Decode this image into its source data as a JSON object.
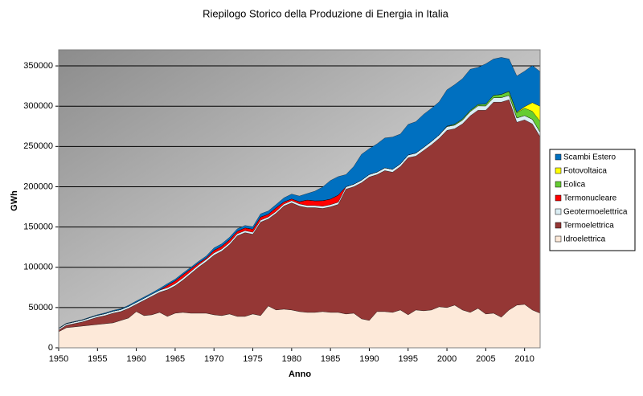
{
  "chart_data": {
    "type": "stacked_area",
    "title": "Riepilogo Storico della Produzione di Energia in Italia",
    "x_label": "Anno",
    "y_label": "GWh",
    "x": [
      1950,
      1951,
      1952,
      1953,
      1954,
      1955,
      1956,
      1957,
      1958,
      1959,
      1960,
      1961,
      1962,
      1963,
      1964,
      1965,
      1966,
      1967,
      1968,
      1969,
      1970,
      1971,
      1972,
      1973,
      1974,
      1975,
      1976,
      1977,
      1978,
      1979,
      1980,
      1981,
      1982,
      1983,
      1984,
      1985,
      1986,
      1987,
      1988,
      1989,
      1990,
      1991,
      1992,
      1993,
      1994,
      1995,
      1996,
      1997,
      1998,
      1999,
      2000,
      2001,
      2002,
      2003,
      2004,
      2005,
      2006,
      2007,
      2008,
      2009,
      2010,
      2011,
      2012
    ],
    "xlim": [
      1950,
      2012
    ],
    "xticks": [
      1950,
      1955,
      1960,
      1965,
      1970,
      1975,
      1980,
      1985,
      1990,
      1995,
      2000,
      2005,
      2010
    ],
    "ylim": [
      0,
      370000
    ],
    "yticks": [
      0,
      50000,
      100000,
      150000,
      200000,
      250000,
      300000,
      350000
    ],
    "grid": true,
    "legend": "right",
    "series": [
      {
        "name": "Idroelettrica",
        "color": "#fde9d9",
        "values": [
          20000,
          25000,
          26000,
          27000,
          28000,
          29000,
          30000,
          31000,
          34000,
          37000,
          45000,
          40000,
          41000,
          44000,
          39000,
          43000,
          44000,
          43000,
          43000,
          43000,
          41000,
          40000,
          42000,
          39000,
          39000,
          42000,
          40000,
          52000,
          47000,
          48000,
          47000,
          45000,
          44000,
          44000,
          45000,
          44000,
          44000,
          42000,
          43000,
          36000,
          34000,
          45000,
          45000,
          44000,
          47000,
          41000,
          47000,
          46000,
          47000,
          51000,
          50000,
          53000,
          47000,
          44000,
          49000,
          42000,
          43000,
          38000,
          47000,
          53000,
          54000,
          47000,
          43000
        ]
      },
      {
        "name": "Termoelettrica",
        "color": "#953735",
        "values": [
          2000,
          3000,
          4000,
          5000,
          7000,
          9000,
          10000,
          12000,
          11000,
          12000,
          9000,
          19000,
          23000,
          25000,
          33000,
          34000,
          40000,
          49000,
          57000,
          64000,
          74000,
          80000,
          86000,
          100000,
          104000,
          99000,
          116000,
          108000,
          120000,
          128000,
          133000,
          131000,
          130000,
          130000,
          128000,
          131000,
          134000,
          155000,
          157000,
          169000,
          178000,
          170000,
          175000,
          174000,
          178000,
          195000,
          191000,
          199000,
          205000,
          209000,
          220000,
          219000,
          231000,
          244000,
          246000,
          253000,
          262000,
          267000,
          261000,
          227000,
          229000,
          231000,
          219000
        ]
      },
      {
        "name": "Geotermoelettrica",
        "color": "#dbeef4",
        "values": [
          1900,
          2000,
          2100,
          2200,
          2300,
          2300,
          2400,
          2500,
          2500,
          2600,
          2600,
          2600,
          2700,
          2600,
          2600,
          2700,
          2800,
          2700,
          2700,
          2800,
          2800,
          2700,
          2600,
          2600,
          2500,
          2500,
          2500,
          2500,
          2500,
          2500,
          2700,
          2700,
          2700,
          2700,
          2800,
          2700,
          2800,
          2900,
          3100,
          3200,
          3200,
          3200,
          3500,
          3700,
          3400,
          3400,
          3800,
          3900,
          4200,
          4400,
          4700,
          4500,
          4700,
          5300,
          5400,
          5300,
          5500,
          5600,
          5500,
          5300,
          5400,
          5700,
          5600
        ]
      },
      {
        "name": "Termonucleare",
        "color": "#ff0000",
        "values": [
          0,
          0,
          0,
          0,
          0,
          0,
          0,
          0,
          0,
          0,
          0,
          0,
          0,
          100,
          3000,
          3500,
          3900,
          3200,
          2500,
          1600,
          3200,
          3400,
          3600,
          3100,
          3400,
          3800,
          3800,
          3400,
          4400,
          2600,
          2200,
          2700,
          6800,
          5800,
          6900,
          7000,
          8800,
          200,
          0,
          0,
          0,
          0,
          0,
          0,
          0,
          0,
          0,
          0,
          0,
          0,
          0,
          0,
          0,
          0,
          0,
          0,
          0,
          0,
          0,
          0,
          0,
          0,
          0
        ]
      },
      {
        "name": "Eolica",
        "color": "#66cc33",
        "values": [
          0,
          0,
          0,
          0,
          0,
          0,
          0,
          0,
          0,
          0,
          0,
          0,
          0,
          0,
          0,
          0,
          0,
          0,
          0,
          0,
          0,
          0,
          0,
          0,
          0,
          0,
          0,
          0,
          0,
          0,
          0,
          0,
          0,
          0,
          0,
          0,
          0,
          0,
          0,
          0,
          0,
          0,
          0,
          0,
          0,
          0,
          0,
          0,
          0,
          0,
          600,
          1200,
          1400,
          1500,
          1800,
          2300,
          3000,
          4000,
          4900,
          6500,
          9100,
          9900,
          13400
        ]
      },
      {
        "name": "Fotovoltaica",
        "color": "#ffff00",
        "values": [
          0,
          0,
          0,
          0,
          0,
          0,
          0,
          0,
          0,
          0,
          0,
          0,
          0,
          0,
          0,
          0,
          0,
          0,
          0,
          0,
          0,
          0,
          0,
          0,
          0,
          0,
          0,
          0,
          0,
          0,
          0,
          0,
          0,
          0,
          0,
          0,
          0,
          0,
          0,
          0,
          0,
          0,
          0,
          0,
          0,
          0,
          0,
          0,
          0,
          0,
          0,
          0,
          0,
          0,
          0,
          0,
          0,
          0,
          200,
          700,
          1900,
          10800,
          18900
        ]
      },
      {
        "name": "Scambi Estero",
        "color": "#0070c0",
        "values": [
          500,
          500,
          600,
          600,
          700,
          800,
          1000,
          1000,
          1000,
          1200,
          1500,
          1500,
          1500,
          2000,
          2000,
          2000,
          2000,
          2000,
          2000,
          2500,
          3000,
          3000,
          3000,
          3000,
          3000,
          3000,
          4000,
          4000,
          4000,
          5000,
          6000,
          7000,
          8000,
          12000,
          17000,
          23000,
          23000,
          15000,
          22000,
          32000,
          32000,
          35000,
          37000,
          40000,
          37000,
          38000,
          39000,
          41000,
          41000,
          41000,
          45000,
          49000,
          50000,
          51000,
          46000,
          50000,
          45000,
          46000,
          40000,
          45000,
          44000,
          46000,
          43000
        ]
      }
    ]
  }
}
